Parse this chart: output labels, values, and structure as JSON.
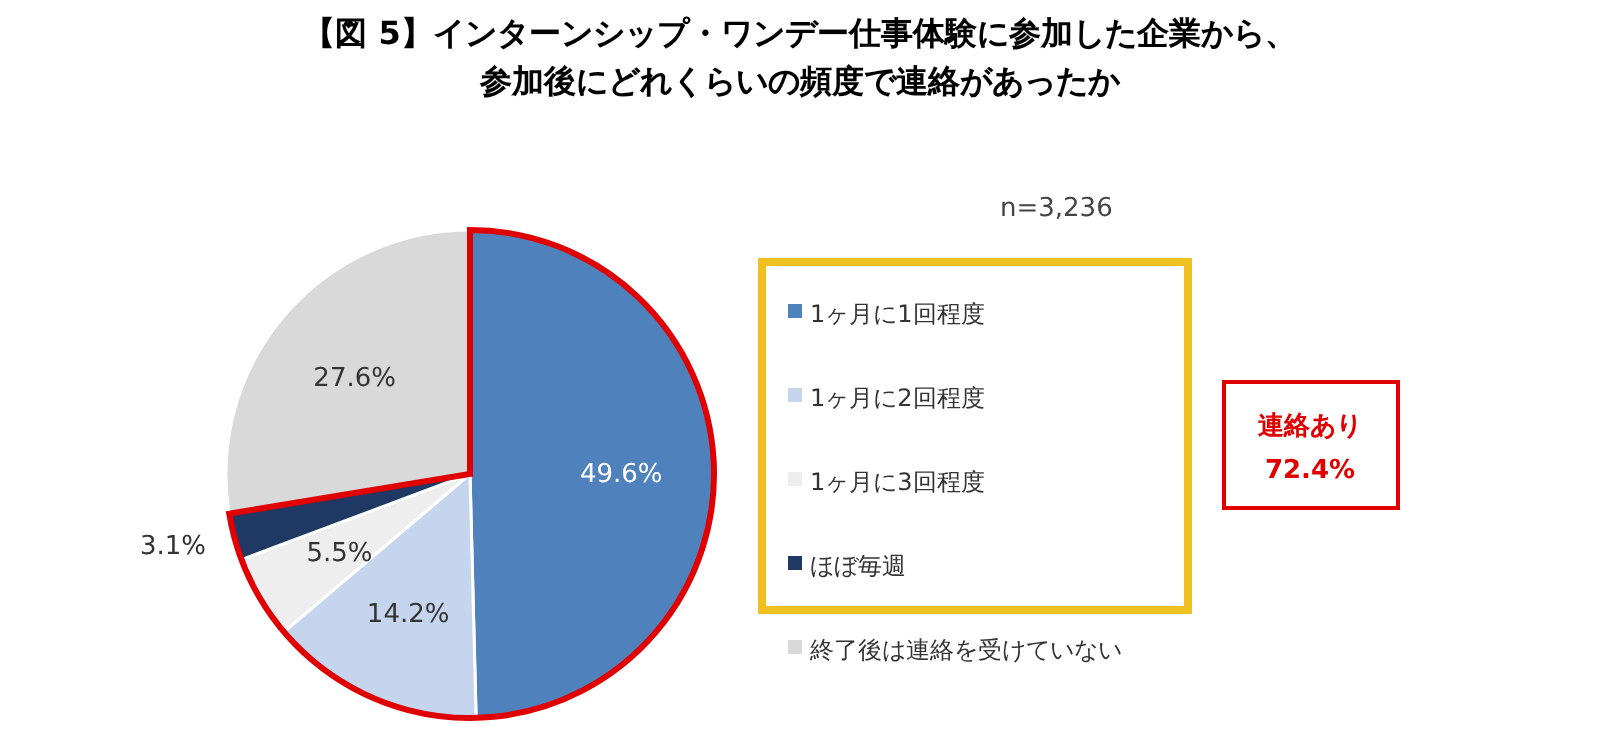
{
  "chart_data": {
    "type": "pie",
    "title": "【図 5】インターンシップ・ワンデー仕事体験に参加した企業から、参加後にどれくらいの頻度で連絡があったか",
    "categories": [
      "1ヶ月に1回程度",
      "1ヶ月に2回程度",
      "1ヶ月に3回程度",
      "ほぼ毎週",
      "終了後は連絡を受けていない"
    ],
    "values": [
      49.6,
      14.2,
      5.5,
      3.1,
      27.6
    ],
    "colors": [
      "#4f81bd",
      "#c6d5ee",
      "#eeeeee",
      "#1f3864",
      "#d9d9d9"
    ],
    "value_labels": [
      "49.6%",
      "14.2%",
      "5.5%",
      "3.1%",
      "27.6%"
    ],
    "annotations": [
      "n=3,236",
      "連絡あり\n72.4%"
    ],
    "legend": "right"
  }
}
